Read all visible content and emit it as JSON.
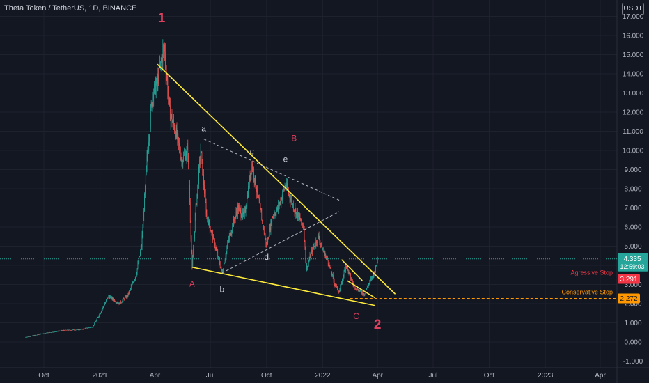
{
  "header": {
    "symbol_title": "Theta Token / TetherUS, 1D, BINANCE",
    "currency": "USDT"
  },
  "colors": {
    "background": "#131722",
    "grid": "#1e222d",
    "up": "#26a69a",
    "down": "#ef5350",
    "trendline": "#ffeb3b",
    "dashed_channel": "#b2b5be",
    "wave_pink": "#e0405f",
    "wave_white": "#d1d4dc",
    "last_price": "#26a69a",
    "aggressive_stop": "#f23645",
    "conservative_stop": "#ff9800"
  },
  "chart_data": {
    "type": "candlestick",
    "title": "Theta Token / TetherUS, 1D, BINANCE",
    "x_tick_labels": [
      "Oct",
      "2021",
      "Apr",
      "Jul",
      "Oct",
      "2022",
      "Apr",
      "Jul",
      "Oct",
      "2023",
      "Apr"
    ],
    "y_tick_labels": [
      "-1.000",
      "0.000",
      "1.000",
      "2.000",
      "3.000",
      "4.000",
      "5.000",
      "6.000",
      "7.000",
      "8.000",
      "9.000",
      "10.000",
      "11.000",
      "12.000",
      "13.000",
      "14.000",
      "15.000",
      "16.000",
      "17.000"
    ],
    "ylim": [
      -1.1,
      17.5
    ],
    "grid": true,
    "price_path": [
      [
        "2020-09-01",
        0.25
      ],
      [
        "2020-10-01",
        0.45
      ],
      [
        "2020-11-01",
        0.6
      ],
      [
        "2020-12-01",
        0.65
      ],
      [
        "2020-12-20",
        0.8
      ],
      [
        "2021-01-01",
        1.5
      ],
      [
        "2021-01-15",
        2.4
      ],
      [
        "2021-02-01",
        2.0
      ],
      [
        "2021-02-15",
        2.4
      ],
      [
        "2021-03-01",
        3.5
      ],
      [
        "2021-03-10",
        5.0
      ],
      [
        "2021-03-20",
        10.0
      ],
      [
        "2021-03-28",
        13.0
      ],
      [
        "2021-04-05",
        13.5
      ],
      [
        "2021-04-16",
        15.5
      ],
      [
        "2021-04-25",
        12.0
      ],
      [
        "2021-05-05",
        11.0
      ],
      [
        "2021-05-15",
        9.5
      ],
      [
        "2021-05-25",
        10.0
      ],
      [
        "2021-06-01",
        3.8
      ],
      [
        "2021-06-07",
        7.0
      ],
      [
        "2021-06-15",
        10.0
      ],
      [
        "2021-06-25",
        6.5
      ],
      [
        "2021-07-05",
        5.5
      ],
      [
        "2021-07-20",
        3.6
      ],
      [
        "2021-08-01",
        5.5
      ],
      [
        "2021-08-15",
        7.0
      ],
      [
        "2021-08-25",
        6.5
      ],
      [
        "2021-09-07",
        9.3
      ],
      [
        "2021-09-20",
        7.0
      ],
      [
        "2021-10-01",
        5.0
      ],
      [
        "2021-10-10",
        6.5
      ],
      [
        "2021-10-20",
        7.0
      ],
      [
        "2021-11-01",
        8.2
      ],
      [
        "2021-11-15",
        7.0
      ],
      [
        "2021-12-01",
        6.0
      ],
      [
        "2021-12-05",
        3.8
      ],
      [
        "2021-12-15",
        4.8
      ],
      [
        "2021-12-25",
        5.5
      ],
      [
        "2022-01-01",
        4.8
      ],
      [
        "2022-01-10",
        4.2
      ],
      [
        "2022-01-21",
        3.0
      ],
      [
        "2022-01-28",
        2.6
      ],
      [
        "2022-02-08",
        4.0
      ],
      [
        "2022-02-20",
        3.0
      ],
      [
        "2022-03-01",
        2.7
      ],
      [
        "2022-03-10",
        2.5
      ],
      [
        "2022-03-20",
        3.2
      ],
      [
        "2022-03-28",
        3.7
      ],
      [
        "2022-04-01",
        4.335
      ]
    ],
    "last_price": {
      "label": "4.335",
      "value": 4.335,
      "countdown": "12:59:03"
    },
    "annotations": {
      "wave_labels": [
        {
          "text": "1",
          "date": "2021-04-12",
          "price": 16.7,
          "color": "pink",
          "size": "large"
        },
        {
          "text": "2",
          "date": "2022-04-01",
          "price": 0.7,
          "color": "pink",
          "size": "large"
        },
        {
          "text": "A",
          "date": "2021-06-01",
          "price": 2.9,
          "color": "pink",
          "size": "small"
        },
        {
          "text": "B",
          "date": "2021-11-15",
          "price": 10.5,
          "color": "pink",
          "size": "small"
        },
        {
          "text": "C",
          "date": "2022-02-25",
          "price": 1.2,
          "color": "pink",
          "size": "small"
        },
        {
          "text": "a",
          "date": "2021-06-20",
          "price": 11.0,
          "color": "white",
          "size": "small"
        },
        {
          "text": "b",
          "date": "2021-07-20",
          "price": 2.6,
          "color": "white",
          "size": "small"
        },
        {
          "text": "c",
          "date": "2021-09-07",
          "price": 9.8,
          "color": "white",
          "size": "small"
        },
        {
          "text": "d",
          "date": "2021-10-01",
          "price": 4.3,
          "color": "white",
          "size": "small"
        },
        {
          "text": "e",
          "date": "2021-11-01",
          "price": 9.4,
          "color": "white",
          "size": "small"
        }
      ],
      "trendlines": [
        {
          "style": "solid",
          "points": [
            [
              "2021-04-05",
              14.5
            ],
            [
              "2022-04-30",
              2.5
            ]
          ]
        },
        {
          "style": "solid",
          "points": [
            [
              "2021-06-01",
              3.9
            ],
            [
              "2022-03-28",
              1.9
            ]
          ]
        },
        {
          "style": "solid",
          "points": [
            [
              "2022-02-01",
              4.3
            ],
            [
              "2022-03-07",
              3.2
            ]
          ]
        },
        {
          "style": "solid",
          "points": [
            [
              "2022-02-10",
              3.2
            ],
            [
              "2022-03-28",
              2.3
            ]
          ]
        },
        {
          "style": "dashed",
          "points": [
            [
              "2021-06-20",
              10.6
            ],
            [
              "2022-01-28",
              7.4
            ]
          ]
        },
        {
          "style": "dashed",
          "points": [
            [
              "2021-07-20",
              3.6
            ],
            [
              "2022-01-28",
              6.8
            ]
          ]
        }
      ],
      "horizontal_levels": [
        {
          "label": "Agressive Stop",
          "price_label": "3.291",
          "value": 3.291,
          "color": "red"
        },
        {
          "label": "Conservative Stop",
          "price_label": "2.272",
          "value": 2.272,
          "color": "orange"
        }
      ]
    }
  }
}
